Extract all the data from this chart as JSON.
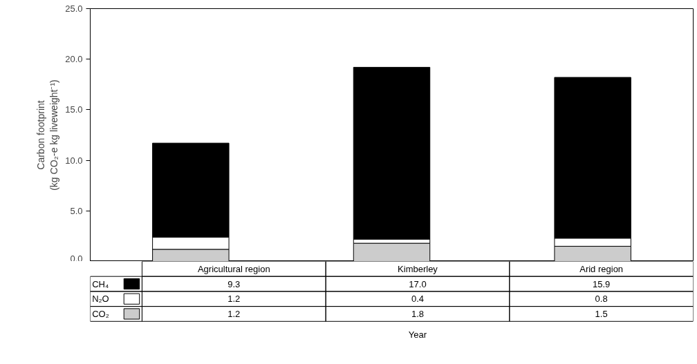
{
  "chart_data": {
    "type": "bar",
    "stacked": true,
    "categories": [
      "Agricultural region",
      "Kimberley",
      "Arid region"
    ],
    "series": [
      {
        "name": "CO₂",
        "color": "#cccccc",
        "values": [
          1.2,
          1.8,
          1.5
        ],
        "value_labels": [
          "1.2",
          "1.8",
          "1.5"
        ]
      },
      {
        "name": "N₂O",
        "color": "#ffffff",
        "values": [
          1.2,
          0.4,
          0.8
        ],
        "value_labels": [
          "1.2",
          "0.4",
          "0.8"
        ]
      },
      {
        "name": "CH₄",
        "color": "#000000",
        "values": [
          9.3,
          17.0,
          15.9
        ],
        "value_labels": [
          "9.3",
          "17.0",
          "15.9"
        ]
      }
    ],
    "ylim": [
      0,
      25
    ],
    "yticks": [
      {
        "value": 0,
        "label": "0.0"
      },
      {
        "value": 5,
        "label": "5.0"
      },
      {
        "value": 10,
        "label": "10.0"
      },
      {
        "value": 15,
        "label": "15.0"
      },
      {
        "value": 20,
        "label": "20.0"
      },
      {
        "value": 25,
        "label": "25.0"
      }
    ],
    "ylabel": "Carbon footprint\n(kg CO₂-e kg liveweight⁻¹)",
    "annotations": [
      "Year"
    ],
    "legend": "bottom",
    "grid": false,
    "tick_labels": "y"
  }
}
